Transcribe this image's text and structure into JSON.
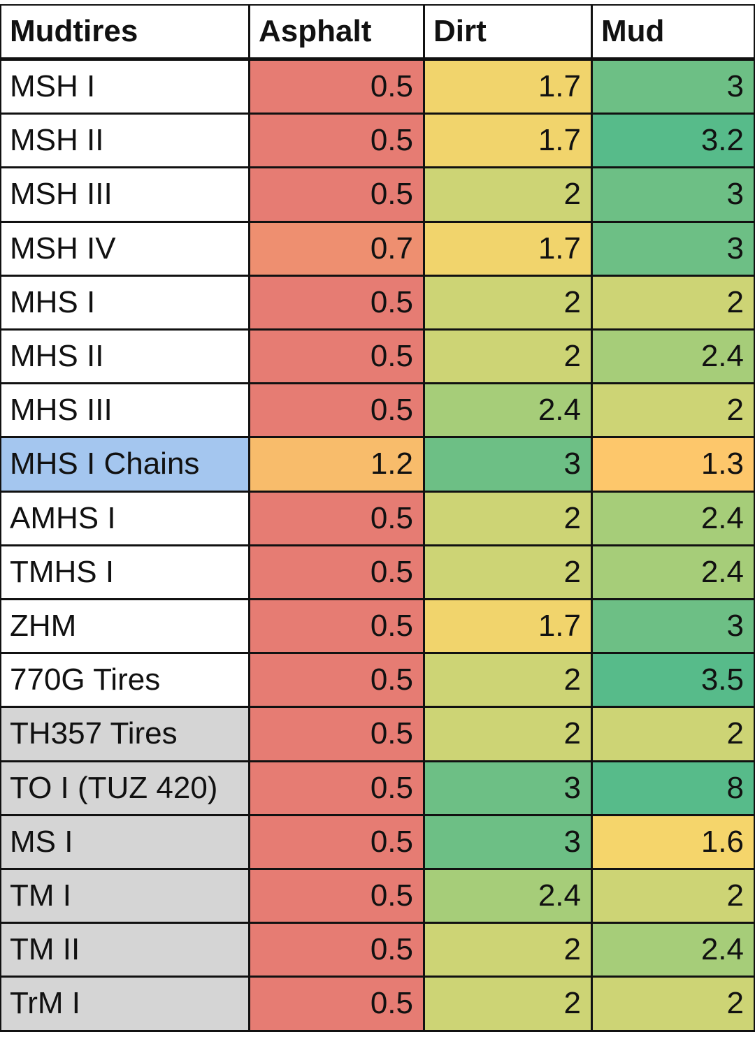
{
  "table": {
    "header": [
      "Mudtires",
      "Asphalt",
      "Dirt",
      "Mud"
    ],
    "rows": [
      {
        "name": "MSH I",
        "name_color": "#ffffff",
        "values": [
          0.5,
          1.7,
          3
        ],
        "colors": [
          "#e67c73",
          "#f1d46c",
          "#6dbf85"
        ]
      },
      {
        "name": "MSH II",
        "name_color": "#ffffff",
        "values": [
          0.5,
          1.7,
          3.2
        ],
        "colors": [
          "#e67c73",
          "#f1d46c",
          "#57bb8a"
        ]
      },
      {
        "name": "MSH III",
        "name_color": "#ffffff",
        "values": [
          0.5,
          2,
          3
        ],
        "colors": [
          "#e67c73",
          "#cdd475",
          "#6dbf85"
        ]
      },
      {
        "name": "MSH IV",
        "name_color": "#ffffff",
        "values": [
          0.7,
          1.7,
          3
        ],
        "colors": [
          "#ee8f70",
          "#f1d46c",
          "#6dbf85"
        ]
      },
      {
        "name": "MHS I",
        "name_color": "#ffffff",
        "values": [
          0.5,
          2,
          2
        ],
        "colors": [
          "#e67c73",
          "#cdd475",
          "#cdd475"
        ]
      },
      {
        "name": "MHS II",
        "name_color": "#ffffff",
        "values": [
          0.5,
          2,
          2.4
        ],
        "colors": [
          "#e67c73",
          "#cdd475",
          "#a6cd79"
        ]
      },
      {
        "name": "MHS III",
        "name_color": "#ffffff",
        "values": [
          0.5,
          2.4,
          2
        ],
        "colors": [
          "#e67c73",
          "#a6cd79",
          "#cdd475"
        ]
      },
      {
        "name": "MHS I Chains",
        "name_color": "#a4c6ef",
        "values": [
          1.2,
          3,
          1.3
        ],
        "colors": [
          "#f8bc6b",
          "#6dbf85",
          "#fdc76b"
        ]
      },
      {
        "name": "AMHS I",
        "name_color": "#ffffff",
        "values": [
          0.5,
          2,
          2.4
        ],
        "colors": [
          "#e67c73",
          "#cdd475",
          "#a6cd79"
        ]
      },
      {
        "name": "TMHS I",
        "name_color": "#ffffff",
        "values": [
          0.5,
          2,
          2.4
        ],
        "colors": [
          "#e67c73",
          "#cdd475",
          "#a6cd79"
        ]
      },
      {
        "name": "ZHM",
        "name_color": "#ffffff",
        "values": [
          0.5,
          1.7,
          3
        ],
        "colors": [
          "#e67c73",
          "#f1d46c",
          "#6dbf85"
        ]
      },
      {
        "name": "770G Tires",
        "name_color": "#ffffff",
        "values": [
          0.5,
          2,
          3.5
        ],
        "colors": [
          "#e67c73",
          "#cdd475",
          "#57bb8a"
        ]
      },
      {
        "name": "TH357 Tires",
        "name_color": "#d5d5d5",
        "values": [
          0.5,
          2,
          2
        ],
        "colors": [
          "#e67c73",
          "#cdd475",
          "#cdd475"
        ]
      },
      {
        "name": "TO I (TUZ 420)",
        "name_color": "#d5d5d5",
        "values": [
          0.5,
          3,
          8
        ],
        "colors": [
          "#e67c73",
          "#6dbf85",
          "#57bb8a"
        ]
      },
      {
        "name": "MS I",
        "name_color": "#d5d5d5",
        "values": [
          0.5,
          3,
          1.6
        ],
        "colors": [
          "#e67c73",
          "#6dbf85",
          "#f5d56b"
        ]
      },
      {
        "name": "TM I",
        "name_color": "#d5d5d5",
        "values": [
          0.5,
          2.4,
          2
        ],
        "colors": [
          "#e67c73",
          "#a6cd79",
          "#cdd475"
        ]
      },
      {
        "name": "TM II",
        "name_color": "#d5d5d5",
        "values": [
          0.5,
          2,
          2.4
        ],
        "colors": [
          "#e67c73",
          "#cdd475",
          "#a6cd79"
        ]
      },
      {
        "name": "TrM I",
        "name_color": "#d5d5d5",
        "values": [
          0.5,
          2,
          2
        ],
        "colors": [
          "#e67c73",
          "#cdd475",
          "#cdd475"
        ]
      }
    ]
  }
}
